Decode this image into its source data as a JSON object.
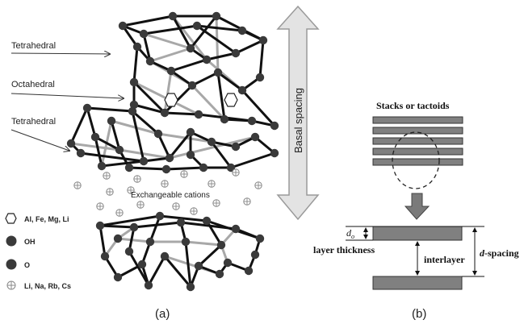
{
  "panel_a": {
    "labels": {
      "tetrahedral_top": "Tetrahedral",
      "octahedral": "Octahedral",
      "tetrahedral_mid": "Tetrahedral",
      "exchangeable": "Exchangeable cations",
      "basal": "Basal spacing"
    },
    "legend": [
      {
        "symbol": "hexagon",
        "text": "Al, Fe, Mg, Li"
      },
      {
        "symbol": "filled-circle",
        "text": "OH"
      },
      {
        "symbol": "filled-circle",
        "text": "O"
      },
      {
        "symbol": "crossed-circle",
        "text": "Li, Na, Rb, Cs"
      }
    ],
    "caption": "(a)"
  },
  "panel_b": {
    "title": "Stacks or tactoids",
    "d0_label": "d",
    "d0_sub": "o",
    "layer_thickness": "layer thickness",
    "interlayer": "interlayer",
    "d_spacing_italic": "d",
    "d_spacing_rest": "-spacing",
    "caption": "(b)"
  },
  "colors": {
    "atom": "#3a3a3a",
    "bond_dark": "#111111",
    "bond_light": "#a8a8a8",
    "arrow_fill": "#e3e3e3",
    "layer_fill": "#808080"
  }
}
